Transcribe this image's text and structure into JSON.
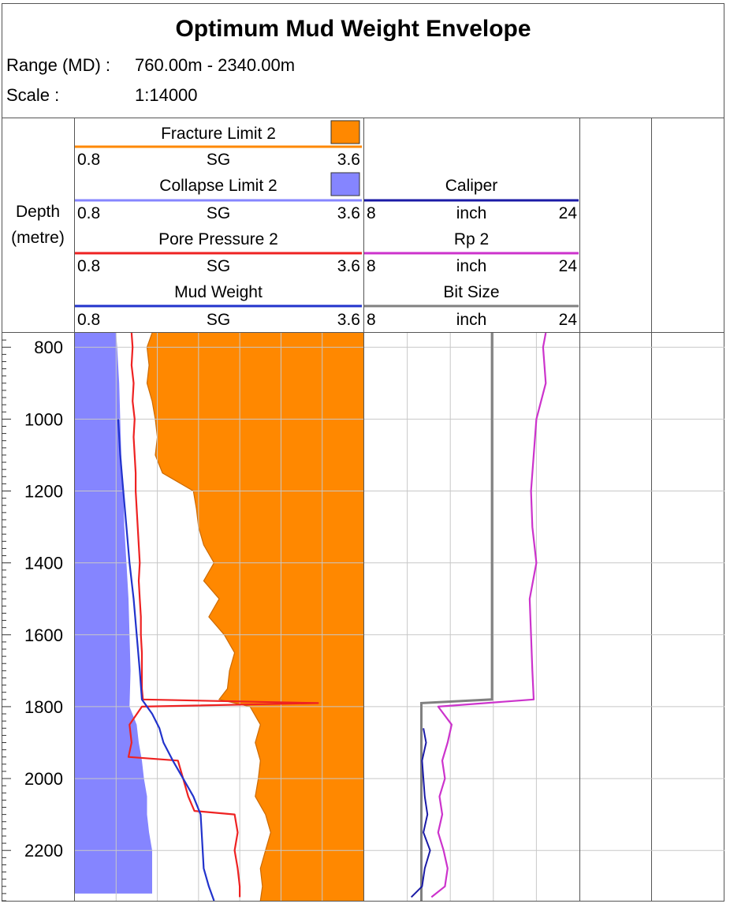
{
  "header": {
    "title": "Optimum Mud Weight Envelope",
    "range_label": "Range (MD) :",
    "range_value": "760.00m - 2340.00m",
    "scale_label": "Scale :",
    "scale_value": "1:14000"
  },
  "depth_track": {
    "label_line1": "Depth",
    "label_line2": "(metre)"
  },
  "track1": {
    "min_label": "0.8",
    "max_label": "3.6",
    "curves": [
      {
        "name": "Fracture Limit 2",
        "unit": "SG",
        "color": "#ff8800",
        "fill": true
      },
      {
        "name": "Collapse Limit 2",
        "unit": "SG",
        "color": "#8585ff",
        "fill": true
      },
      {
        "name": "Pore Pressure 2",
        "unit": "SG",
        "color": "#ee2222",
        "fill": false
      },
      {
        "name": "Mud Weight",
        "unit": "SG",
        "color": "#2233cc",
        "fill": false
      }
    ]
  },
  "track2": {
    "min_label": "8",
    "max_label": "24",
    "curves": [
      {
        "name": "Caliper",
        "unit": "inch",
        "color": "#1a1aa6"
      },
      {
        "name": "Rp 2",
        "unit": "inch",
        "color": "#cc33cc"
      },
      {
        "name": "Bit Size",
        "unit": "inch",
        "color": "#808080"
      }
    ]
  },
  "chart_data": {
    "type": "line",
    "title": "Optimum Mud Weight Envelope",
    "ylabel": "Depth (metre)",
    "depth_range": [
      760,
      2340
    ],
    "depth_ticks": [
      "800",
      "1000",
      "1200",
      "1400",
      "1600",
      "1800",
      "2000",
      "2200"
    ],
    "depth_tick_values": [
      800,
      1000,
      1200,
      1400,
      1600,
      1800,
      2000,
      2200
    ],
    "y_reversed": true,
    "grid": true,
    "tracks": [
      {
        "xlim": [
          0.8,
          3.6
        ],
        "unit": "SG",
        "series": [
          {
            "name": "Fracture Limit 2",
            "depth": [
              760,
              800,
              850,
              900,
              950,
              1000,
              1050,
              1100,
              1150,
              1200,
              1250,
              1300,
              1350,
              1400,
              1450,
              1500,
              1550,
              1600,
              1650,
              1700,
              1750,
              1780,
              1800,
              1850,
              1900,
              1950,
              2000,
              2050,
              2100,
              2150,
              2200,
              2250,
              2300,
              2340
            ],
            "values": [
              1.55,
              1.5,
              1.52,
              1.5,
              1.55,
              1.58,
              1.6,
              1.58,
              1.65,
              1.95,
              1.98,
              2.0,
              2.05,
              2.15,
              2.05,
              2.2,
              2.1,
              2.25,
              2.35,
              2.3,
              2.28,
              2.2,
              2.5,
              2.6,
              2.55,
              2.6,
              2.58,
              2.55,
              2.65,
              2.7,
              2.65,
              2.6,
              2.62,
              2.6
            ]
          },
          {
            "name": "Collapse Limit 2",
            "depth": [
              760,
              800,
              900,
              1000,
              1100,
              1200,
              1300,
              1400,
              1500,
              1600,
              1700,
              1800,
              1850,
              1900,
              1950,
              2000,
              2050,
              2100,
              2150,
              2200,
              2250,
              2300,
              2320
            ],
            "values": [
              1.2,
              1.21,
              1.23,
              1.24,
              1.25,
              1.27,
              1.28,
              1.3,
              1.32,
              1.33,
              1.34,
              1.33,
              1.4,
              1.42,
              1.45,
              1.47,
              1.5,
              1.5,
              1.52,
              1.55,
              1.55,
              1.55,
              1.55
            ]
          },
          {
            "name": "Pore Pressure 2",
            "depth": [
              760,
              800,
              850,
              900,
              950,
              1000,
              1050,
              1100,
              1150,
              1200,
              1250,
              1300,
              1350,
              1400,
              1450,
              1500,
              1550,
              1600,
              1650,
              1700,
              1750,
              1780,
              1790,
              1800,
              1850,
              1900,
              1940,
              1950,
              2000,
              2050,
              2090,
              2100,
              2150,
              2200,
              2250,
              2300,
              2330
            ],
            "values": [
              1.35,
              1.36,
              1.35,
              1.37,
              1.36,
              1.38,
              1.37,
              1.38,
              1.39,
              1.39,
              1.4,
              1.41,
              1.42,
              1.43,
              1.42,
              1.43,
              1.44,
              1.44,
              1.45,
              1.45,
              1.45,
              1.46,
              3.16,
              1.45,
              1.33,
              1.35,
              1.32,
              1.8,
              1.85,
              1.9,
              1.96,
              2.35,
              2.38,
              2.35,
              2.38,
              2.4,
              2.4
            ]
          },
          {
            "name": "Mud Weight",
            "depth": [
              1000,
              1100,
              1200,
              1300,
              1400,
              1500,
              1600,
              1700,
              1780,
              1820,
              1860,
              1900,
              1950,
              2000,
              2050,
              2100,
              2150,
              2200,
              2250,
              2300,
              2340
            ],
            "values": [
              1.22,
              1.24,
              1.27,
              1.3,
              1.33,
              1.37,
              1.4,
              1.43,
              1.45,
              1.55,
              1.62,
              1.66,
              1.75,
              1.85,
              1.95,
              2.02,
              2.03,
              2.04,
              2.05,
              2.1,
              2.15
            ]
          }
        ]
      },
      {
        "xlim": [
          8,
          24
        ],
        "unit": "inch",
        "series": [
          {
            "name": "Caliper",
            "depth": [
              1860,
              1900,
              1950,
              2000,
              2050,
              2100,
              2150,
              2200,
              2250,
              2300,
              2330
            ],
            "values": [
              12.4,
              12.6,
              12.3,
              12.4,
              12.5,
              12.7,
              12.4,
              12.9,
              12.5,
              12.3,
              11.5
            ]
          },
          {
            "name": "Rp 2",
            "depth": [
              760,
              800,
              900,
              1000,
              1100,
              1200,
              1300,
              1400,
              1500,
              1600,
              1700,
              1780,
              1800,
              1850,
              1900,
              1950,
              2000,
              2050,
              2100,
              2150,
              2200,
              2250,
              2300,
              2330
            ],
            "values": [
              21.5,
              21.3,
              21.5,
              20.8,
              20.6,
              20.4,
              20.5,
              20.8,
              20.3,
              20.4,
              20.5,
              20.6,
              13.5,
              14.5,
              14.2,
              13.8,
              14.0,
              13.6,
              13.8,
              13.5,
              13.9,
              14.2,
              14.0,
              13.0
            ]
          },
          {
            "name": "Bit Size",
            "depth": [
              760,
              1780,
              1790,
              2340
            ],
            "values": [
              17.5,
              17.5,
              12.25,
              12.25
            ]
          }
        ]
      }
    ]
  }
}
